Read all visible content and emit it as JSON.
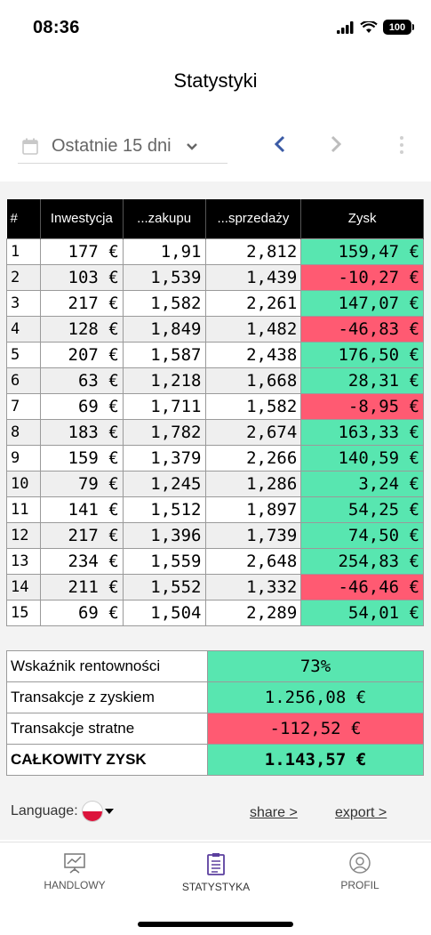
{
  "status_bar": {
    "time": "08:36",
    "battery": "100"
  },
  "header": {
    "title": "Statystyki"
  },
  "toolbar": {
    "period": "Ostatnie 15 dni"
  },
  "trades": {
    "columns": [
      "#",
      "Inwestycja",
      "...zakupu",
      "...sprzedaży",
      "Zysk"
    ],
    "rows": [
      {
        "n": "1",
        "inv": "177 €",
        "buy": "1,91",
        "sell": "2,812",
        "profit": "159,47 €",
        "type": "pos"
      },
      {
        "n": "2",
        "inv": "103 €",
        "buy": "1,539",
        "sell": "1,439",
        "profit": "-10,27 €",
        "type": "neg"
      },
      {
        "n": "3",
        "inv": "217 €",
        "buy": "1,582",
        "sell": "2,261",
        "profit": "147,07 €",
        "type": "pos"
      },
      {
        "n": "4",
        "inv": "128 €",
        "buy": "1,849",
        "sell": "1,482",
        "profit": "-46,83 €",
        "type": "neg"
      },
      {
        "n": "5",
        "inv": "207 €",
        "buy": "1,587",
        "sell": "2,438",
        "profit": "176,50 €",
        "type": "pos"
      },
      {
        "n": "6",
        "inv": "63 €",
        "buy": "1,218",
        "sell": "1,668",
        "profit": "28,31 €",
        "type": "pos"
      },
      {
        "n": "7",
        "inv": "69 €",
        "buy": "1,711",
        "sell": "1,582",
        "profit": "-8,95 €",
        "type": "neg"
      },
      {
        "n": "8",
        "inv": "183 €",
        "buy": "1,782",
        "sell": "2,674",
        "profit": "163,33 €",
        "type": "pos"
      },
      {
        "n": "9",
        "inv": "159 €",
        "buy": "1,379",
        "sell": "2,266",
        "profit": "140,59 €",
        "type": "pos"
      },
      {
        "n": "10",
        "inv": "79 €",
        "buy": "1,245",
        "sell": "1,286",
        "profit": "3,24 €",
        "type": "pos"
      },
      {
        "n": "11",
        "inv": "141 €",
        "buy": "1,512",
        "sell": "1,897",
        "profit": "54,25 €",
        "type": "pos"
      },
      {
        "n": "12",
        "inv": "217 €",
        "buy": "1,396",
        "sell": "1,739",
        "profit": "74,50 €",
        "type": "pos"
      },
      {
        "n": "13",
        "inv": "234 €",
        "buy": "1,559",
        "sell": "2,648",
        "profit": "254,83 €",
        "type": "pos"
      },
      {
        "n": "14",
        "inv": "211 €",
        "buy": "1,552",
        "sell": "1,332",
        "profit": "-46,46 €",
        "type": "neg"
      },
      {
        "n": "15",
        "inv": "69 €",
        "buy": "1,504",
        "sell": "2,289",
        "profit": "54,01 €",
        "type": "pos"
      }
    ]
  },
  "summary": {
    "rows": [
      {
        "label": "Wskaźnik rentowności",
        "value": "73%",
        "type": "pos"
      },
      {
        "label": "Transakcje z zyskiem",
        "value": "1.256,08 €",
        "type": "pos"
      },
      {
        "label": "Transakcje stratne",
        "value": "-112,52 €",
        "type": "neg"
      },
      {
        "label": "CAŁKOWITY ZYSK",
        "value": "1.143,57 €",
        "type": "pos",
        "total": true
      }
    ]
  },
  "footer": {
    "language_label": "Language:",
    "share": "share >",
    "export": "export >"
  },
  "bottom_nav": {
    "items": [
      {
        "label": "HANDLOWY",
        "icon": "chart-board-icon"
      },
      {
        "label": "STATYSTYKA",
        "icon": "clipboard-icon",
        "active": true
      },
      {
        "label": "PROFIL",
        "icon": "profile-icon"
      }
    ]
  },
  "colors": {
    "positive": "#58e6b0",
    "negative": "#ff5a72",
    "accent": "#3b5ba5",
    "active_icon": "#5b3f9e"
  }
}
